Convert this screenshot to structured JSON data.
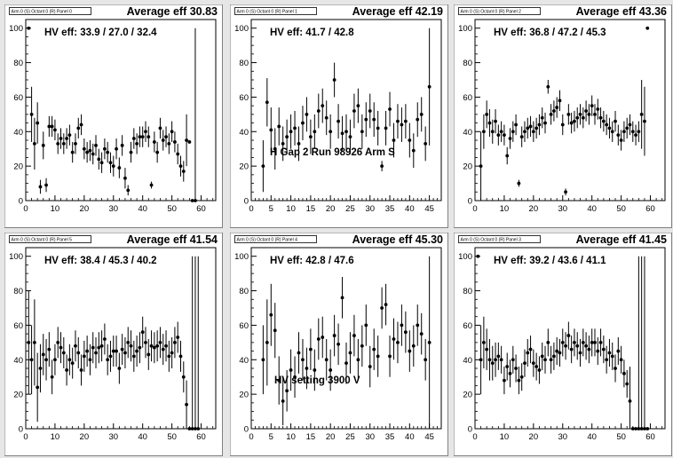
{
  "chart_data": [
    {
      "type": "scatter",
      "title": "Arm 0 (S) Octant 0 (R) Panel 0",
      "avg_label": "Average eff 30.83",
      "hv_label": "HV eff:   33.9 / 27.0 / 32.4",
      "xlim": [
        0,
        65
      ],
      "ylim": [
        0,
        105
      ],
      "xticks": [
        0,
        10,
        20,
        30,
        40,
        50,
        60
      ],
      "yticks": [
        0,
        20,
        40,
        60,
        80,
        100
      ],
      "x": [
        1,
        2,
        3,
        4,
        5,
        6,
        7,
        8,
        9,
        10,
        11,
        12,
        13,
        14,
        15,
        16,
        17,
        18,
        19,
        20,
        21,
        22,
        23,
        24,
        25,
        26,
        27,
        28,
        29,
        30,
        31,
        32,
        33,
        34,
        35,
        36,
        37,
        38,
        39,
        40,
        41,
        42,
        43,
        44,
        45,
        46,
        47,
        48,
        49,
        50,
        51,
        52,
        53,
        54,
        55,
        56,
        57,
        58
      ],
      "y": [
        100,
        50,
        33,
        45,
        8,
        32,
        9,
        43,
        43,
        41,
        33,
        36,
        33,
        36,
        38,
        28,
        33,
        42,
        44,
        30,
        28,
        29,
        27,
        32,
        24,
        22,
        30,
        28,
        22,
        20,
        30,
        19,
        32,
        13,
        6,
        28,
        36,
        33,
        37,
        37,
        40,
        37,
        9,
        34,
        28,
        42,
        35,
        37,
        33,
        40,
        34,
        27,
        20,
        17,
        35,
        34,
        0,
        0
      ],
      "err": [
        0,
        16,
        15,
        12,
        4,
        8,
        4,
        6,
        6,
        6,
        6,
        6,
        6,
        6,
        6,
        6,
        6,
        6,
        6,
        6,
        6,
        6,
        6,
        6,
        6,
        6,
        6,
        6,
        6,
        6,
        6,
        6,
        6,
        6,
        3,
        6,
        6,
        6,
        6,
        6,
        6,
        6,
        2,
        6,
        6,
        6,
        6,
        6,
        6,
        6,
        6,
        6,
        6,
        6,
        15,
        0,
        0,
        100
      ]
    },
    {
      "type": "scatter",
      "title": "Arm 0 (S) Octant 0 (R) Panel 1",
      "avg_label": "Average eff 42.19",
      "hv_label": "HV eff:   41.7 / 42.8",
      "annotation": "H Gap 2 Run 98926 Arm S",
      "xlim": [
        0,
        48
      ],
      "ylim": [
        0,
        105
      ],
      "xticks": [
        0,
        5,
        10,
        15,
        20,
        25,
        30,
        35,
        40,
        45
      ],
      "yticks": [
        0,
        20,
        40,
        60,
        80,
        100
      ],
      "x": [
        3,
        4,
        5,
        6,
        7,
        8,
        9,
        10,
        11,
        12,
        13,
        14,
        15,
        16,
        17,
        18,
        19,
        20,
        21,
        22,
        23,
        24,
        25,
        26,
        27,
        28,
        29,
        30,
        31,
        32,
        33,
        34,
        35,
        36,
        37,
        38,
        39,
        40,
        41,
        42,
        43,
        44,
        45
      ],
      "y": [
        20,
        57,
        41,
        30,
        43,
        33,
        37,
        40,
        42,
        33,
        45,
        50,
        37,
        40,
        52,
        55,
        48,
        40,
        70,
        46,
        39,
        40,
        37,
        52,
        55,
        40,
        47,
        52,
        47,
        42,
        20,
        42,
        53,
        35,
        46,
        44,
        46,
        35,
        29,
        47,
        50,
        33,
        66
      ],
      "err": [
        15,
        14,
        13,
        12,
        11,
        10,
        10,
        10,
        10,
        10,
        10,
        10,
        10,
        10,
        10,
        10,
        10,
        10,
        10,
        10,
        10,
        10,
        10,
        10,
        10,
        10,
        10,
        10,
        10,
        10,
        3,
        10,
        10,
        10,
        10,
        10,
        10,
        10,
        10,
        10,
        10,
        10,
        34
      ]
    },
    {
      "type": "scatter",
      "title": "Arm 0 (S) Octant 0 (R) Panel 2",
      "avg_label": "Average eff 43.36",
      "hv_label": "HV eff:   36.8 / 47.2 / 45.3",
      "xlim": [
        0,
        65
      ],
      "ylim": [
        0,
        105
      ],
      "xticks": [
        0,
        10,
        20,
        30,
        40,
        50,
        60
      ],
      "yticks": [
        0,
        20,
        40,
        60,
        80,
        100
      ],
      "x": [
        2,
        3,
        4,
        5,
        6,
        7,
        8,
        9,
        10,
        11,
        12,
        13,
        14,
        15,
        16,
        17,
        18,
        19,
        20,
        21,
        22,
        23,
        24,
        25,
        26,
        27,
        28,
        29,
        30,
        31,
        32,
        33,
        34,
        35,
        36,
        37,
        38,
        39,
        40,
        41,
        42,
        43,
        44,
        45,
        46,
        47,
        48,
        49,
        50,
        51,
        52,
        53,
        54,
        55,
        56,
        57,
        58,
        59
      ],
      "y": [
        20,
        40,
        50,
        45,
        40,
        46,
        38,
        40,
        38,
        26,
        36,
        40,
        44,
        10,
        37,
        40,
        42,
        43,
        40,
        42,
        44,
        48,
        45,
        66,
        50,
        52,
        54,
        58,
        44,
        5,
        50,
        45,
        46,
        48,
        50,
        48,
        52,
        50,
        55,
        50,
        53,
        48,
        46,
        44,
        42,
        40,
        46,
        38,
        35,
        40,
        42,
        44,
        40,
        38,
        40,
        50,
        46,
        100
      ],
      "err": [
        20,
        10,
        8,
        8,
        7,
        7,
        6,
        6,
        6,
        5,
        6,
        6,
        6,
        2,
        6,
        6,
        6,
        6,
        6,
        6,
        6,
        6,
        6,
        4,
        6,
        6,
        6,
        6,
        6,
        2,
        6,
        6,
        6,
        6,
        6,
        6,
        6,
        6,
        6,
        6,
        6,
        6,
        6,
        6,
        6,
        6,
        6,
        6,
        6,
        6,
        6,
        6,
        6,
        6,
        6,
        20,
        20,
        0
      ]
    },
    {
      "type": "scatter",
      "title": "Arm 0 (S) Octant 0 (R) Panel 5",
      "avg_label": "Average eff 41.54",
      "hv_label": "HV eff:   38.4 / 45.3 / 40.2",
      "xlim": [
        0,
        65
      ],
      "ylim": [
        0,
        105
      ],
      "xticks": [
        0,
        10,
        20,
        30,
        40,
        50,
        60
      ],
      "yticks": [
        0,
        20,
        40,
        60,
        80,
        100
      ],
      "x": [
        1,
        2,
        3,
        4,
        5,
        6,
        7,
        8,
        9,
        10,
        11,
        12,
        13,
        14,
        15,
        16,
        17,
        18,
        19,
        20,
        21,
        22,
        23,
        24,
        25,
        26,
        27,
        28,
        29,
        30,
        31,
        32,
        33,
        34,
        35,
        36,
        37,
        38,
        39,
        40,
        41,
        42,
        43,
        44,
        45,
        46,
        47,
        48,
        49,
        50,
        51,
        52,
        53,
        54,
        55,
        56,
        57,
        58,
        59
      ],
      "y": [
        50,
        40,
        50,
        24,
        35,
        43,
        40,
        46,
        30,
        40,
        50,
        47,
        44,
        34,
        40,
        38,
        48,
        44,
        34,
        42,
        45,
        40,
        47,
        44,
        47,
        48,
        52,
        40,
        42,
        45,
        45,
        35,
        46,
        44,
        50,
        48,
        42,
        45,
        47,
        56,
        50,
        43,
        48,
        47,
        48,
        50,
        46,
        48,
        42,
        44,
        50,
        53,
        42,
        30,
        14,
        0,
        0,
        0,
        0
      ],
      "err": [
        30,
        20,
        25,
        20,
        14,
        12,
        12,
        10,
        10,
        9,
        9,
        9,
        9,
        9,
        9,
        9,
        9,
        9,
        9,
        9,
        9,
        9,
        9,
        9,
        9,
        9,
        9,
        9,
        9,
        9,
        9,
        9,
        9,
        9,
        9,
        9,
        9,
        9,
        9,
        9,
        9,
        9,
        9,
        9,
        9,
        9,
        9,
        9,
        9,
        9,
        9,
        9,
        9,
        9,
        14,
        0,
        100,
        100,
        100
      ]
    },
    {
      "type": "scatter",
      "title": "Arm 0 (S) Octant 0 (R) Panel 4",
      "avg_label": "Average eff 45.30",
      "hv_label": "HV eff:   42.8 / 47.6",
      "annotation": "HV setting 3900 V",
      "xlim": [
        0,
        48
      ],
      "ylim": [
        0,
        105
      ],
      "xticks": [
        0,
        5,
        10,
        15,
        20,
        25,
        30,
        35,
        40,
        45
      ],
      "yticks": [
        0,
        20,
        40,
        60,
        80,
        100
      ],
      "x": [
        3,
        4,
        5,
        6,
        7,
        8,
        9,
        10,
        11,
        12,
        13,
        14,
        15,
        16,
        17,
        18,
        19,
        20,
        21,
        22,
        23,
        24,
        25,
        26,
        27,
        28,
        29,
        30,
        31,
        32,
        33,
        34,
        35,
        36,
        37,
        38,
        39,
        40,
        41,
        42,
        43,
        44,
        45
      ],
      "y": [
        40,
        50,
        66,
        57,
        28,
        16,
        22,
        34,
        30,
        44,
        40,
        35,
        46,
        34,
        52,
        53,
        40,
        34,
        54,
        49,
        76,
        38,
        44,
        54,
        40,
        48,
        60,
        36,
        46,
        42,
        70,
        72,
        42,
        52,
        50,
        60,
        56,
        45,
        48,
        60,
        55,
        40,
        50
      ],
      "err": [
        20,
        25,
        18,
        16,
        14,
        14,
        12,
        12,
        12,
        12,
        12,
        12,
        12,
        12,
        12,
        12,
        12,
        12,
        12,
        12,
        12,
        12,
        12,
        12,
        12,
        12,
        12,
        12,
        12,
        12,
        12,
        12,
        12,
        12,
        12,
        12,
        12,
        12,
        12,
        12,
        12,
        12,
        50
      ]
    },
    {
      "type": "scatter",
      "title": "Arm 0 (S) Octant 0 (R) Panel 3",
      "avg_label": "Average eff 41.45",
      "hv_label": "HV eff:   39.2 / 43.6 / 41.1",
      "xlim": [
        0,
        65
      ],
      "ylim": [
        0,
        105
      ],
      "xticks": [
        0,
        10,
        20,
        30,
        40,
        50,
        60
      ],
      "yticks": [
        0,
        20,
        40,
        60,
        80,
        100
      ],
      "x": [
        1,
        2,
        3,
        4,
        5,
        6,
        7,
        8,
        9,
        10,
        11,
        12,
        13,
        14,
        15,
        16,
        17,
        18,
        19,
        20,
        21,
        22,
        23,
        24,
        25,
        26,
        27,
        28,
        29,
        30,
        31,
        32,
        33,
        34,
        35,
        36,
        37,
        38,
        39,
        40,
        41,
        42,
        43,
        44,
        45,
        46,
        47,
        48,
        49,
        50,
        51,
        52,
        53,
        54,
        55,
        56,
        57,
        58,
        59
      ],
      "y": [
        100,
        40,
        50,
        46,
        40,
        38,
        40,
        42,
        40,
        28,
        36,
        32,
        40,
        35,
        28,
        30,
        38,
        44,
        46,
        38,
        36,
        34,
        42,
        40,
        50,
        40,
        42,
        45,
        44,
        50,
        48,
        54,
        46,
        50,
        48,
        44,
        50,
        48,
        46,
        50,
        50,
        45,
        50,
        46,
        40,
        44,
        42,
        35,
        45,
        40,
        32,
        26,
        16,
        0,
        0,
        0,
        0,
        0,
        0
      ],
      "err": [
        0,
        20,
        15,
        12,
        12,
        10,
        10,
        8,
        8,
        8,
        8,
        8,
        8,
        8,
        8,
        8,
        8,
        8,
        8,
        8,
        8,
        8,
        8,
        8,
        8,
        8,
        8,
        8,
        8,
        8,
        8,
        8,
        8,
        8,
        8,
        8,
        8,
        8,
        8,
        8,
        8,
        8,
        8,
        8,
        8,
        8,
        8,
        8,
        8,
        8,
        8,
        8,
        20,
        0,
        0,
        100,
        100,
        100,
        0
      ]
    }
  ]
}
